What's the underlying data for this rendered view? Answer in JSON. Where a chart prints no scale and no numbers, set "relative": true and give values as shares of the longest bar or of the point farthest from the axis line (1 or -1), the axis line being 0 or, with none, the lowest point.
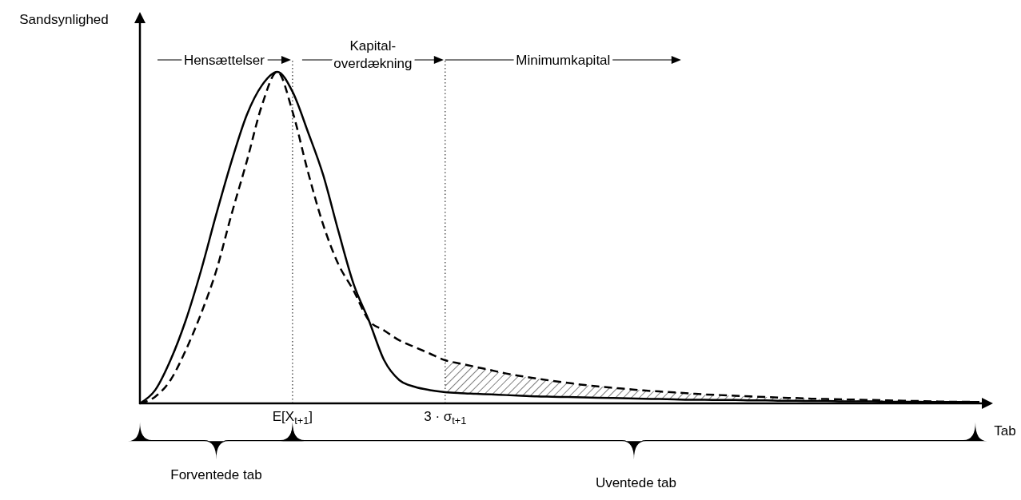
{
  "chart_data": {
    "type": "line",
    "relative": true,
    "xlabel": "Tab",
    "ylabel": "Sandsynlighed",
    "tick_labels": "x",
    "categories": [
      null,
      null,
      null,
      null,
      null,
      null,
      null,
      null,
      null,
      null,
      "E[X$_{t+1}$]",
      null,
      null,
      null,
      null,
      null,
      null,
      null,
      null,
      null,
      "3 · σ$_{t+1}$",
      null,
      null,
      null,
      null,
      null,
      null,
      null,
      null,
      null,
      null,
      null,
      null,
      null,
      null,
      null,
      null,
      null,
      null,
      null,
      null,
      null,
      null,
      null,
      null,
      null,
      null,
      null,
      null,
      null,
      null,
      null,
      null,
      null,
      null,
      null
    ],
    "series": [
      {
        "color": "#000000",
        "line_style": "solid",
        "values": [
          0,
          0.04,
          0.13,
          0.25,
          0.4,
          0.57,
          0.73,
          0.87,
          0.96,
          1,
          0.94,
          0.82,
          0.69,
          0.52,
          0.36,
          0.25,
          0.13,
          0.07,
          0.05,
          0.04,
          0.034,
          0.031,
          0.029,
          0.027,
          0.025,
          0.023,
          0.021,
          0.02,
          0.019,
          0.018,
          0.017,
          0.016,
          0.015,
          0.014,
          0.013,
          0.012,
          0.011,
          0.011,
          0.01,
          0.01,
          0.009,
          0.009,
          0.008,
          0.008,
          0.007,
          0.007,
          0.006,
          0.006,
          0.006,
          0.005,
          0.005,
          0.005,
          0.004,
          0.004,
          0.004,
          0.004
        ]
      },
      {
        "color": "#000000",
        "line_style": "dashed",
        "values": [
          0,
          0.02,
          0.07,
          0.16,
          0.27,
          0.4,
          0.57,
          0.73,
          0.9,
          1,
          0.88,
          0.7,
          0.54,
          0.42,
          0.34,
          0.25,
          0.22,
          0.19,
          0.17,
          0.15,
          0.13,
          0.12,
          0.11,
          0.1,
          0.09,
          0.082,
          0.075,
          0.068,
          0.062,
          0.056,
          0.051,
          0.047,
          0.043,
          0.039,
          0.036,
          0.033,
          0.03,
          0.027,
          0.025,
          0.023,
          0.021,
          0.019,
          0.017,
          0.016,
          0.014,
          0.013,
          0.012,
          0.011,
          0.01,
          0.009,
          0.008,
          0.007,
          0.006,
          0.005,
          0.005,
          0.004
        ],
        "lower": [
          null,
          null,
          null,
          null,
          null,
          null,
          null,
          null,
          null,
          null,
          null,
          null,
          null,
          null,
          null,
          null,
          null,
          null,
          null,
          null,
          0.034,
          0.031,
          0.029,
          0.027,
          0.025,
          0.023,
          0.021,
          0.02,
          0.019,
          0.018,
          0.017,
          0.016,
          0.015,
          0.014,
          0.013,
          0.012,
          0.011,
          0.011,
          0.01,
          0.01,
          0.009,
          0.009,
          0.008,
          0.008,
          0.007,
          0.007,
          0.006,
          0.006,
          0.006,
          0.005,
          0.005,
          0.005,
          0.004,
          0.004,
          0.004,
          0.004
        ],
        "upper": [
          null,
          null,
          null,
          null,
          null,
          null,
          null,
          null,
          null,
          null,
          null,
          null,
          null,
          null,
          null,
          null,
          null,
          null,
          null,
          null,
          0.13,
          0.12,
          0.11,
          0.1,
          0.09,
          0.082,
          0.075,
          0.068,
          0.062,
          0.056,
          0.051,
          0.047,
          0.043,
          0.039,
          0.036,
          0.033,
          0.03,
          0.027,
          0.025,
          0.023,
          0.021,
          0.019,
          0.017,
          0.016,
          0.014,
          0.013,
          0.012,
          0.011,
          0.01,
          0.009,
          0.008,
          0.007,
          0.006,
          0.005,
          0.005,
          0.004
        ]
      }
    ],
    "ref_lines": [
      {
        "axis": "x",
        "value": "E[X$_{t+1}$]",
        "line_style": "dotted",
        "color": "#000000"
      },
      {
        "axis": "x",
        "value": "3 · σ$_{t+1}$",
        "line_style": "dotted",
        "color": "#000000"
      }
    ],
    "annotations": [
      "Hensættelser",
      "Kapital-overdækning",
      "Minimumkapital",
      "Forventede tab",
      "Uventede tab"
    ]
  }
}
